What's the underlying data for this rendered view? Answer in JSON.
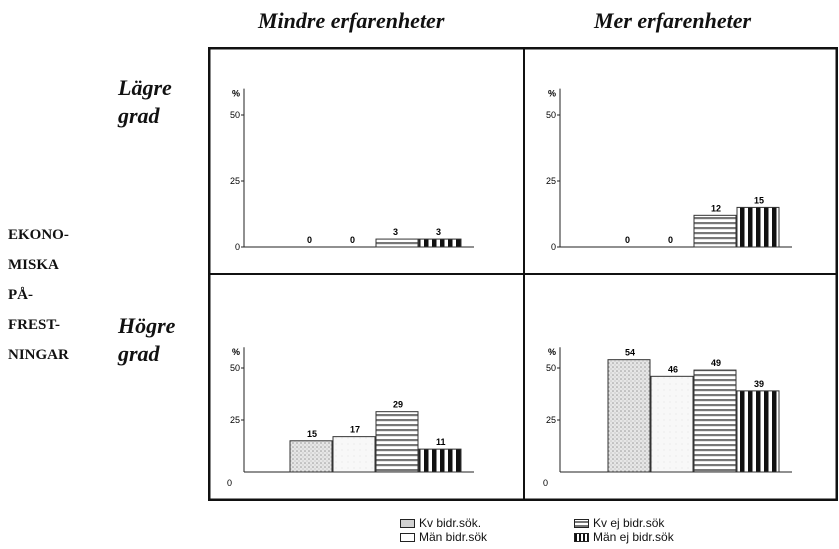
{
  "header": {
    "col1": "Mindre erfarenheter",
    "col2": "Mer erfarenheter"
  },
  "rows": {
    "row1_line1": "Lägre",
    "row1_line2": "grad",
    "row2_line1": "Högre",
    "row2_line2": "grad"
  },
  "side_label": [
    "EKONO-",
    "MISKA",
    "PÅ-",
    "FREST-",
    "NINGAR"
  ],
  "legend": {
    "kv_bidr": "Kv bidr.sök.",
    "man_bidr": "Män bidr.sök",
    "kv_ej_bidr": "Kv ej bidr.sök",
    "man_ej_bidr": "Män ej bidr.sök"
  },
  "colors": {
    "bar_light_dotted": "#d8d8d8",
    "bar_white": "#f7f7f7",
    "bar_horizontal_stripes": "#8a8a8a",
    "bar_vertical_stripes": "#111111",
    "frame": "#111111"
  },
  "chart_data": [
    {
      "type": "bar",
      "panel": "Mindre erfarenheter / Lägre grad",
      "categories": [
        "Kv bidr.sök.",
        "Män bidr.sök",
        "Kv ej bidr.sök",
        "Män ej bidr.sök"
      ],
      "values": [
        0,
        0,
        3,
        3
      ],
      "ylabel": "%",
      "yticks": [
        0,
        25,
        50
      ],
      "ylim": [
        0,
        60
      ]
    },
    {
      "type": "bar",
      "panel": "Mer erfarenheter / Lägre grad",
      "categories": [
        "Kv bidr.sök.",
        "Män bidr.sök",
        "Kv ej bidr.sök",
        "Män ej bidr.sök"
      ],
      "values": [
        0,
        0,
        12,
        15
      ],
      "ylabel": "%",
      "yticks": [
        0,
        25,
        50
      ],
      "ylim": [
        0,
        60
      ]
    },
    {
      "type": "bar",
      "panel": "Mindre erfarenheter / Högre grad",
      "categories": [
        "Kv bidr.sök.",
        "Män bidr.sök",
        "Kv ej bidr.sök",
        "Män ej bidr.sök"
      ],
      "values": [
        15,
        17,
        29,
        11
      ],
      "ylabel": "%",
      "yticks": [
        0,
        25,
        50
      ],
      "ylim": [
        0,
        60
      ]
    },
    {
      "type": "bar",
      "panel": "Mer erfarenheter / Högre grad",
      "categories": [
        "Kv bidr.sök.",
        "Män bidr.sök",
        "Kv ej bidr.sök",
        "Män ej bidr.sök"
      ],
      "values": [
        54,
        46,
        49,
        39
      ],
      "ylabel": "%",
      "yticks": [
        0,
        25,
        50
      ],
      "ylim": [
        0,
        60
      ]
    }
  ]
}
